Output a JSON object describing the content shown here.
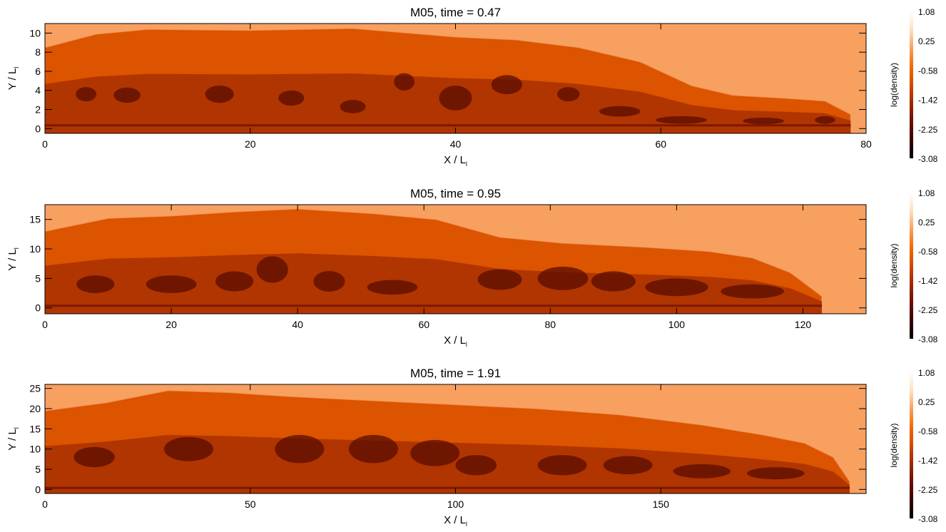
{
  "colorbar": {
    "label": "log(density)",
    "ticks": [
      "1.08",
      "0.25",
      "-0.58",
      "-1.42",
      "-2.25",
      "-3.08"
    ],
    "range": [
      -3.08,
      1.08
    ],
    "colors": [
      "#000000",
      "#3a0000",
      "#6e0f00",
      "#a02800",
      "#cf4a00",
      "#f06a00",
      "#f8a060",
      "#fde0bf",
      "#ffffff"
    ]
  },
  "chart_data": [
    {
      "type": "heatmap",
      "title": "M05, time = 0.47",
      "xlabel": "X / L",
      "xlabel_sub": "l",
      "ylabel": "Y / L",
      "ylabel_sub": "l",
      "xlim": [
        0,
        80
      ],
      "ylim": [
        -0.5,
        11
      ],
      "xticks": [
        0,
        20,
        40,
        60,
        80
      ],
      "yticks": [
        0,
        2,
        4,
        6,
        8,
        10
      ],
      "value": "log(density)",
      "ambient_log_density": 0.0,
      "front_x": 78.5,
      "envelope": [
        [
          0,
          8.5
        ],
        [
          5,
          9.9
        ],
        [
          10,
          10.4
        ],
        [
          20,
          10.3
        ],
        [
          30,
          10.5
        ],
        [
          40,
          9.6
        ],
        [
          46,
          9.3
        ],
        [
          52,
          8.5
        ],
        [
          58,
          7.0
        ],
        [
          63,
          4.5
        ],
        [
          67,
          3.5
        ],
        [
          72,
          3.2
        ],
        [
          76,
          2.9
        ],
        [
          78.5,
          1.5
        ]
      ],
      "vortices": [
        [
          4,
          3.6,
          2.0,
          1.5
        ],
        [
          8,
          3.5,
          2.6,
          1.6
        ],
        [
          17,
          3.6,
          2.8,
          1.8
        ],
        [
          24,
          3.2,
          2.5,
          1.6
        ],
        [
          30,
          2.3,
          2.5,
          1.4
        ],
        [
          35,
          4.9,
          2.0,
          1.8
        ],
        [
          40,
          3.2,
          3.2,
          2.6
        ],
        [
          45,
          4.6,
          3.0,
          2.0
        ],
        [
          51,
          3.6,
          2.2,
          1.5
        ],
        [
          56,
          1.8,
          4.0,
          1.1
        ],
        [
          62,
          0.9,
          5.0,
          0.8
        ],
        [
          70,
          0.8,
          4.0,
          0.7
        ],
        [
          76,
          0.9,
          2.0,
          0.8
        ]
      ]
    },
    {
      "type": "heatmap",
      "title": "M05, time = 0.95",
      "xlabel": "X / L",
      "xlabel_sub": "l",
      "ylabel": "Y / L",
      "ylabel_sub": "l",
      "xlim": [
        0,
        130
      ],
      "ylim": [
        -1,
        17.5
      ],
      "xticks": [
        0,
        20,
        40,
        60,
        80,
        100,
        120
      ],
      "yticks": [
        0,
        5,
        10,
        15
      ],
      "value": "log(density)",
      "ambient_log_density": 0.0,
      "front_x": 123,
      "envelope": [
        [
          0,
          13
        ],
        [
          10,
          15.2
        ],
        [
          20,
          15.6
        ],
        [
          30,
          16.3
        ],
        [
          40,
          16.8
        ],
        [
          52,
          16.0
        ],
        [
          62,
          15.0
        ],
        [
          72,
          12.0
        ],
        [
          82,
          11.0
        ],
        [
          95,
          10.3
        ],
        [
          105,
          9.6
        ],
        [
          112,
          8.5
        ],
        [
          118,
          6.0
        ],
        [
          123,
          2.0
        ]
      ],
      "vortices": [
        [
          8,
          4.0,
          6,
          3
        ],
        [
          20,
          4.0,
          8,
          3
        ],
        [
          30,
          4.5,
          6,
          3.4
        ],
        [
          36,
          6.5,
          5,
          4.5
        ],
        [
          45,
          4.5,
          5,
          3.5
        ],
        [
          55,
          3.5,
          8,
          2.5
        ],
        [
          72,
          4.8,
          7,
          3.5
        ],
        [
          82,
          5.0,
          8,
          4.0
        ],
        [
          90,
          4.5,
          7,
          3.4
        ],
        [
          100,
          3.5,
          10,
          3.0
        ],
        [
          112,
          2.8,
          10,
          2.4
        ]
      ]
    },
    {
      "type": "heatmap",
      "title": "M05, time = 1.91",
      "xlabel": "X / L",
      "xlabel_sub": "l",
      "ylabel": "Y / L",
      "ylabel_sub": "l",
      "xlim": [
        0,
        200
      ],
      "ylim": [
        -1,
        26
      ],
      "xticks": [
        0,
        50,
        100,
        150
      ],
      "yticks": [
        0,
        5,
        10,
        15,
        20,
        25
      ],
      "value": "log(density)",
      "ambient_log_density": 0.0,
      "front_x": 196,
      "envelope": [
        [
          0,
          19.5
        ],
        [
          15,
          21.5
        ],
        [
          30,
          24.5
        ],
        [
          45,
          24.0
        ],
        [
          60,
          23.0
        ],
        [
          80,
          22.0
        ],
        [
          100,
          21.0
        ],
        [
          120,
          20.0
        ],
        [
          140,
          18.5
        ],
        [
          160,
          16.0
        ],
        [
          175,
          13.5
        ],
        [
          185,
          11.5
        ],
        [
          192,
          8.0
        ],
        [
          196,
          2.0
        ]
      ],
      "vortices": [
        [
          12,
          8.0,
          10,
          5
        ],
        [
          35,
          10.0,
          12,
          6
        ],
        [
          62,
          10.0,
          12,
          7
        ],
        [
          80,
          10.0,
          12,
          7
        ],
        [
          95,
          9.0,
          12,
          6.5
        ],
        [
          105,
          6.0,
          10,
          5
        ],
        [
          126,
          6.0,
          12,
          5
        ],
        [
          142,
          6.0,
          12,
          4.5
        ],
        [
          160,
          4.5,
          14,
          3.5
        ],
        [
          178,
          4.0,
          14,
          3.0
        ]
      ]
    }
  ]
}
